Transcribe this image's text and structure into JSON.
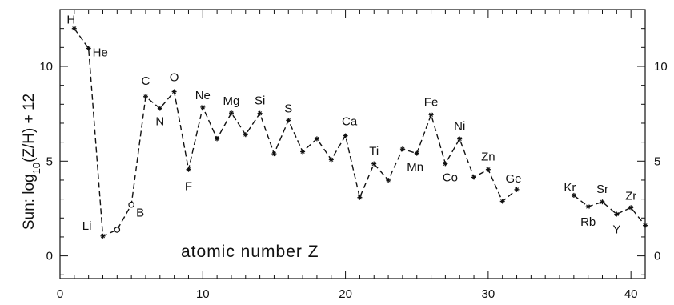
{
  "chart_data": {
    "type": "line",
    "ylabel_parts": [
      "Sun: log",
      "10",
      "(Z/H) + 12"
    ],
    "inner_label": "atomic number Z",
    "xlim": [
      0,
      41
    ],
    "ylim": [
      -1.2,
      13
    ],
    "xticks": [
      0,
      10,
      20,
      30,
      40
    ],
    "yticks": [
      0,
      5,
      10
    ],
    "series": [
      {
        "segments": [
          [
            [
              1,
              12.0
            ],
            [
              2,
              10.95
            ],
            [
              3,
              1.05
            ],
            [
              4,
              1.38
            ],
            [
              5,
              2.7
            ],
            [
              6,
              8.4
            ],
            [
              7,
              7.78
            ],
            [
              8,
              8.67
            ],
            [
              9,
              4.56
            ],
            [
              10,
              7.85
            ],
            [
              11,
              6.18
            ],
            [
              12,
              7.54
            ],
            [
              13,
              6.4
            ],
            [
              14,
              7.52
            ],
            [
              15,
              5.39
            ],
            [
              16,
              7.15
            ],
            [
              17,
              5.5
            ],
            [
              18,
              6.18
            ],
            [
              19,
              5.08
            ],
            [
              20,
              6.34
            ],
            [
              21,
              3.08
            ],
            [
              22,
              4.86
            ],
            [
              23,
              4.0
            ],
            [
              24,
              5.64
            ],
            [
              25,
              5.41
            ],
            [
              26,
              7.45
            ],
            [
              27,
              4.87
            ],
            [
              28,
              6.17
            ],
            [
              29,
              4.15
            ],
            [
              30,
              4.56
            ],
            [
              31,
              2.88
            ],
            [
              32,
              3.5
            ]
          ],
          [
            [
              36,
              3.2
            ],
            [
              37,
              2.6
            ],
            [
              38,
              2.85
            ],
            [
              39,
              2.2
            ],
            [
              40,
              2.55
            ],
            [
              41,
              1.6
            ]
          ]
        ]
      }
    ],
    "element_labels": [
      {
        "label": "H",
        "x": 1,
        "y": 12.0
      },
      {
        "label": "He",
        "x": 2,
        "y": 10.95
      },
      {
        "label": "Li",
        "x": 3,
        "y": 1.05
      },
      {
        "label": "B",
        "x": 5,
        "y": 2.7
      },
      {
        "label": "C",
        "x": 6,
        "y": 8.4
      },
      {
        "label": "N",
        "x": 7,
        "y": 7.78
      },
      {
        "label": "O",
        "x": 8,
        "y": 8.67
      },
      {
        "label": "F",
        "x": 9,
        "y": 4.56
      },
      {
        "label": "Ne",
        "x": 10,
        "y": 7.85
      },
      {
        "label": "Mg",
        "x": 12,
        "y": 7.54
      },
      {
        "label": "Si",
        "x": 14,
        "y": 7.52
      },
      {
        "label": "S",
        "x": 16,
        "y": 7.15
      },
      {
        "label": "Ca",
        "x": 20,
        "y": 6.34
      },
      {
        "label": "Ti",
        "x": 22,
        "y": 4.86
      },
      {
        "label": "Mn",
        "x": 25,
        "y": 5.41
      },
      {
        "label": "Fe",
        "x": 26,
        "y": 7.45
      },
      {
        "label": "Co",
        "x": 27,
        "y": 4.87
      },
      {
        "label": "Ni",
        "x": 28,
        "y": 6.17
      },
      {
        "label": "Zn",
        "x": 30,
        "y": 4.56
      },
      {
        "label": "Ge",
        "x": 32,
        "y": 3.5
      },
      {
        "label": "Kr",
        "x": 36,
        "y": 3.2
      },
      {
        "label": "Rb",
        "x": 37,
        "y": 2.6
      },
      {
        "label": "Sr",
        "x": 38,
        "y": 2.85
      },
      {
        "label": "Y",
        "x": 39,
        "y": 2.2
      },
      {
        "label": "Zr",
        "x": 40,
        "y": 2.55
      }
    ],
    "colors": {
      "line": "#111111",
      "axes": "#111111"
    },
    "grid": false
  }
}
